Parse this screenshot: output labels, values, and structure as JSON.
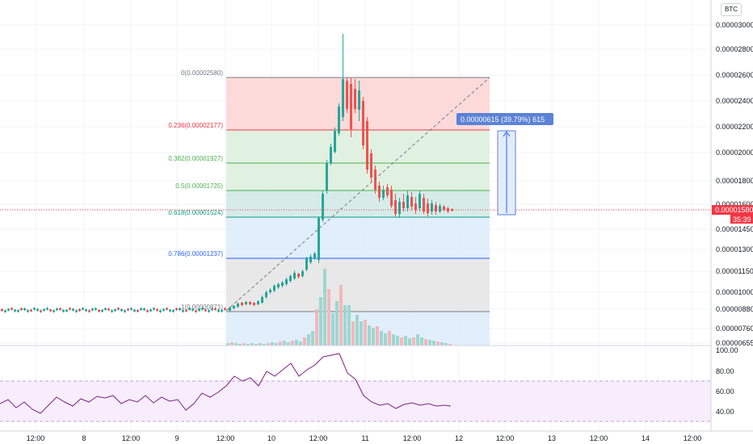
{
  "currency_button": "BTC",
  "price_axis": {
    "ticks": [
      "0.00003000",
      "0.00002800",
      "0.00002600",
      "0.00002400",
      "0.00002200",
      "0.00002000",
      "0.00001800",
      "0.00001600",
      "0.00001450",
      "0.00001300",
      "0.00001150",
      "0.00001000",
      "0.00000880",
      "0.00000760",
      "0.00000655"
    ],
    "current_price": "0.00001580",
    "countdown": "35:39"
  },
  "rsi_axis": {
    "ticks": [
      "100.00",
      "80.00",
      "60.00",
      "40.00"
    ]
  },
  "time_axis": {
    "ticks": [
      "12:00",
      "8",
      "12:00",
      "9",
      "12:00",
      "10",
      "12:00",
      "11",
      "12:00",
      "12",
      "12:00",
      "13",
      "12:00",
      "14",
      "12:00"
    ]
  },
  "fib_levels": [
    {
      "label": "0(0.00002580)",
      "color": "#787b86"
    },
    {
      "label": "0.236(0.00002177)",
      "color": "#f23645"
    },
    {
      "label": "0.382(0.00001927)",
      "color": "#4caf50"
    },
    {
      "label": "0.5(0.00001725)",
      "color": "#4caf50"
    },
    {
      "label": "0.618(0.00001524)",
      "color": "#089981"
    },
    {
      "label": "0.786(0.00001237)",
      "color": "#2962ff"
    },
    {
      "label": "1(0.00000871)",
      "color": "#787b86"
    }
  ],
  "measure_label": "0.00000615 (39.79%) 615",
  "colors": {
    "up": "#26a69a",
    "down": "#ef5350",
    "grid": "#f0f3fa",
    "rsi_line": "#7e1f86",
    "rsi_band": "#f3e5fb",
    "price_line": "#f23645",
    "measure": "#5b82d6"
  }
}
